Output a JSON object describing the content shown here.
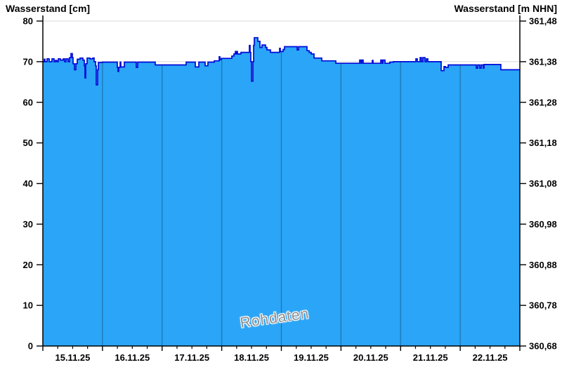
{
  "chart": {
    "title_left": "Wasserstand [cm]",
    "title_right": "Wasserstand [m NHN]",
    "watermark": "Rohdaten"
  },
  "chart_data": {
    "type": "area",
    "title": "Wasserstand [cm] / Wasserstand [m NHN]",
    "xlabel": "",
    "ylabel_left": "Wasserstand [cm]",
    "ylabel_right": "Wasserstand [m NHN]",
    "ylim_left": [
      0,
      80
    ],
    "ylim_right": [
      360.68,
      361.48
    ],
    "y_ticks_left": [
      "80",
      "70",
      "60",
      "50",
      "40",
      "30",
      "20",
      "10",
      "0"
    ],
    "y_tick_values": [
      80,
      70,
      60,
      50,
      40,
      30,
      20,
      10,
      0
    ],
    "y_ticks_right": [
      "361,48",
      "361,38",
      "361,28",
      "361,18",
      "361,08",
      "360,98",
      "360,88",
      "360,78",
      "360,68"
    ],
    "x_labels": [
      "15.11.25",
      "16.11.25",
      "17.11.25",
      "18.11.25",
      "19.11.25",
      "20.11.25",
      "21.11.25",
      "22.11.25"
    ],
    "x_range_days": [
      0,
      8
    ],
    "x_minor_ticks_per_day": 4,
    "grid": true,
    "legend": "none",
    "colors": {
      "fill": "#2AA5F7",
      "line": "#000AD8",
      "grid": "#D8D8D8",
      "axis": "#000000",
      "day_separator": "rgba(0,0,0,0.28)"
    },
    "series": [
      {
        "name": "Wasserstand Rohdaten",
        "unit": "cm",
        "points": [
          [
            0.0,
            70.0
          ],
          [
            0.024,
            70.6
          ],
          [
            0.035,
            70.0
          ],
          [
            0.071,
            70.7
          ],
          [
            0.106,
            70.0
          ],
          [
            0.153,
            70.7
          ],
          [
            0.189,
            70.0
          ],
          [
            0.212,
            70.3
          ],
          [
            0.236,
            70.0
          ],
          [
            0.259,
            70.7
          ],
          [
            0.295,
            70.4
          ],
          [
            0.342,
            70.7
          ],
          [
            0.365,
            70.0
          ],
          [
            0.389,
            70.7
          ],
          [
            0.424,
            70.0
          ],
          [
            0.448,
            71.0
          ],
          [
            0.471,
            72.0
          ],
          [
            0.495,
            71.0
          ],
          [
            0.507,
            69.5
          ],
          [
            0.53,
            68.0
          ],
          [
            0.554,
            69.5
          ],
          [
            0.577,
            70.6
          ],
          [
            0.624,
            70.9
          ],
          [
            0.672,
            70.4
          ],
          [
            0.695,
            69.0
          ],
          [
            0.707,
            66.0
          ],
          [
            0.719,
            69.5
          ],
          [
            0.742,
            70.9
          ],
          [
            0.789,
            70.7
          ],
          [
            0.837,
            70.9
          ],
          [
            0.86,
            70.0
          ],
          [
            0.884,
            69.0
          ],
          [
            0.895,
            64.3
          ],
          [
            0.919,
            68.0
          ],
          [
            0.931,
            69.8
          ],
          [
            1.0,
            69.9
          ],
          [
            1.249,
            68.6
          ],
          [
            1.261,
            67.6
          ],
          [
            1.272,
            68.6
          ],
          [
            1.296,
            69.9
          ],
          [
            1.308,
            68.7
          ],
          [
            1.367,
            69.9
          ],
          [
            1.555,
            69.9
          ],
          [
            1.567,
            68.6
          ],
          [
            1.59,
            69.9
          ],
          [
            1.885,
            69.2
          ],
          [
            2.403,
            69.9
          ],
          [
            2.557,
            68.7
          ],
          [
            2.616,
            69.9
          ],
          [
            2.722,
            69.0
          ],
          [
            2.769,
            69.9
          ],
          [
            2.875,
            70.2
          ],
          [
            2.957,
            71.2
          ],
          [
            2.969,
            70.5
          ],
          [
            2.993,
            70.8
          ],
          [
            3.169,
            71.4
          ],
          [
            3.205,
            71.9
          ],
          [
            3.228,
            72.5
          ],
          [
            3.24,
            71.9
          ],
          [
            3.252,
            72.5
          ],
          [
            3.264,
            71.9
          ],
          [
            3.322,
            72.3
          ],
          [
            3.464,
            74.0
          ],
          [
            3.476,
            72.3
          ],
          [
            3.487,
            70.0
          ],
          [
            3.499,
            65.2
          ],
          [
            3.523,
            70.0
          ],
          [
            3.535,
            74.0
          ],
          [
            3.546,
            75.9
          ],
          [
            3.605,
            75.0
          ],
          [
            3.641,
            73.5
          ],
          [
            3.676,
            74.1
          ],
          [
            3.735,
            73.5
          ],
          [
            3.758,
            72.9
          ],
          [
            3.817,
            72.3
          ],
          [
            3.97,
            73.3
          ],
          [
            3.982,
            72.5
          ],
          [
            4.029,
            73.0
          ],
          [
            4.053,
            73.7
          ],
          [
            4.265,
            72.9
          ],
          [
            4.289,
            73.7
          ],
          [
            4.43,
            72.7
          ],
          [
            4.466,
            72.3
          ],
          [
            4.501,
            71.9
          ],
          [
            4.548,
            70.9
          ],
          [
            4.678,
            70.2
          ],
          [
            4.913,
            69.6
          ],
          [
            5.314,
            70.4
          ],
          [
            5.337,
            69.6
          ],
          [
            5.349,
            70.4
          ],
          [
            5.373,
            69.6
          ],
          [
            5.526,
            70.3
          ],
          [
            5.538,
            69.6
          ],
          [
            5.667,
            70.4
          ],
          [
            5.691,
            69.6
          ],
          [
            5.702,
            70.4
          ],
          [
            5.738,
            69.6
          ],
          [
            5.82,
            69.9
          ],
          [
            5.879,
            70.0
          ],
          [
            6.256,
            70.7
          ],
          [
            6.28,
            70.0
          ],
          [
            6.327,
            71.0
          ],
          [
            6.35,
            70.0
          ],
          [
            6.374,
            71.0
          ],
          [
            6.409,
            70.0
          ],
          [
            6.433,
            70.7
          ],
          [
            6.456,
            70.0
          ],
          [
            6.68,
            67.8
          ],
          [
            6.727,
            68.8
          ],
          [
            6.751,
            68.6
          ],
          [
            6.798,
            69.2
          ],
          [
            7.269,
            68.4
          ],
          [
            7.293,
            69.2
          ],
          [
            7.328,
            68.4
          ],
          [
            7.352,
            69.2
          ],
          [
            7.387,
            68.4
          ],
          [
            7.399,
            69.3
          ],
          [
            7.681,
            68.0
          ],
          [
            8.0,
            68.0
          ]
        ]
      }
    ]
  }
}
